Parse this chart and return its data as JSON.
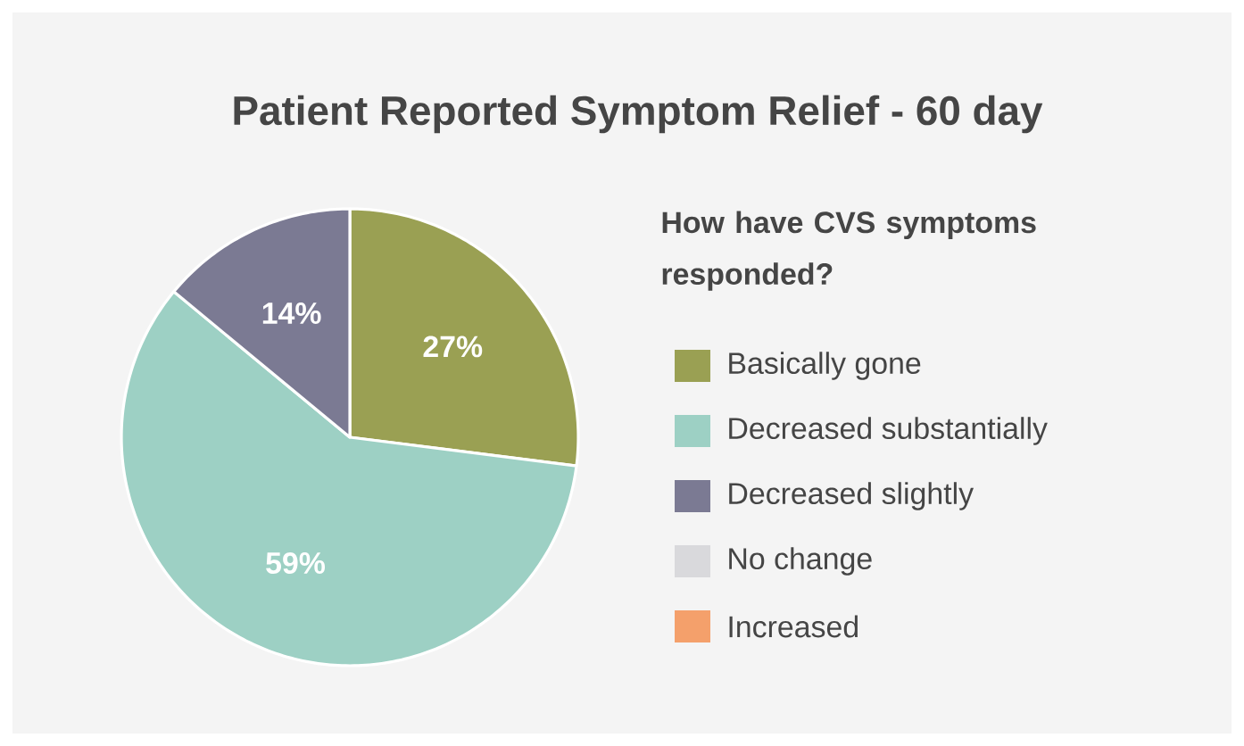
{
  "chart_data": {
    "type": "pie",
    "title": "Patient Reported Symptom Relief - 60 day",
    "legend_title": "How have CVS symptoms responded?",
    "categories": [
      "Basically gone",
      "Decreased substantially",
      "Decreased slightly",
      "No change",
      "Increased"
    ],
    "values": [
      27,
      59,
      14,
      0,
      0
    ],
    "colors": [
      "#9aa053",
      "#9dd0c4",
      "#7b7a93",
      "#d9d9dc",
      "#f4a06b"
    ],
    "value_labels": [
      "27%",
      "59%",
      "14%",
      null,
      null
    ],
    "legend": "right"
  }
}
